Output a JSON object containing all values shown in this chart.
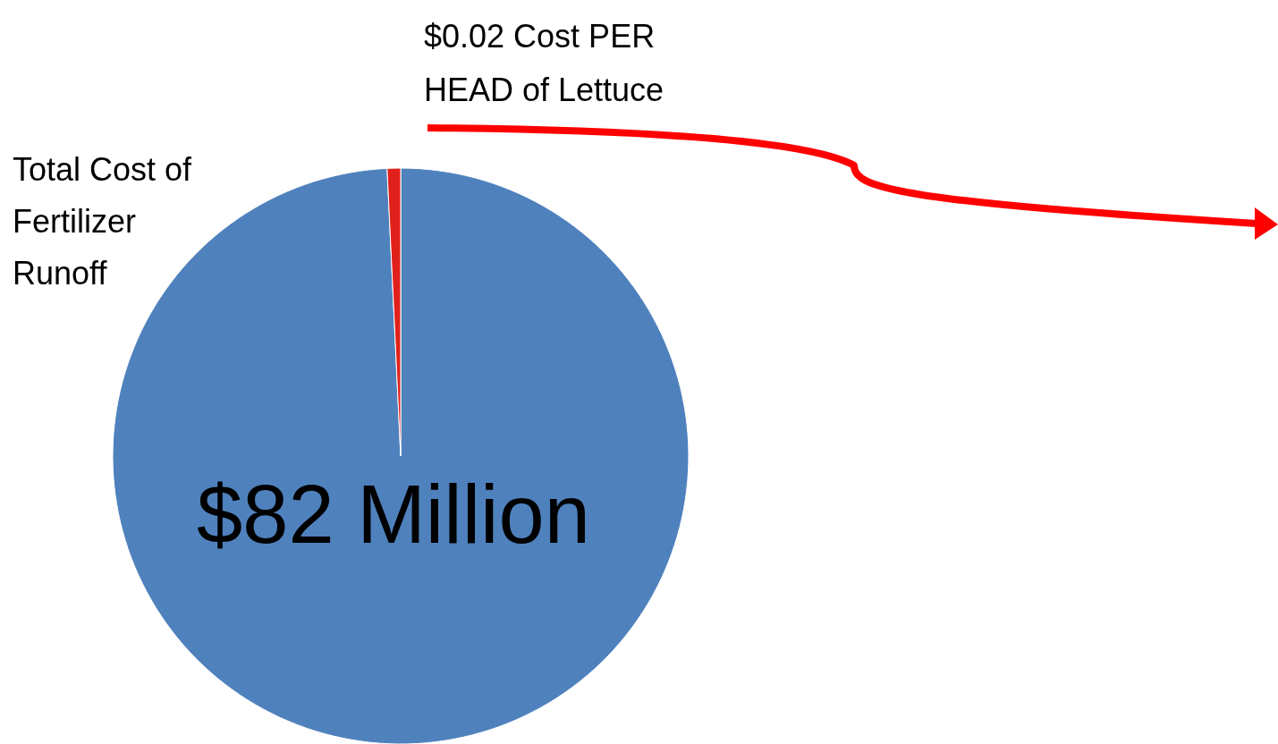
{
  "chart_data": {
    "type": "pie",
    "categories": [
      "Total Cost of Fertilizer Runoff",
      "$0.02 Cost PER HEAD of Lettuce"
    ],
    "values": [
      99.25,
      0.75
    ],
    "colors": [
      "#4f81bd",
      "#e0201a"
    ],
    "annotations": [
      "$82 Million"
    ],
    "legend": false
  }
}
